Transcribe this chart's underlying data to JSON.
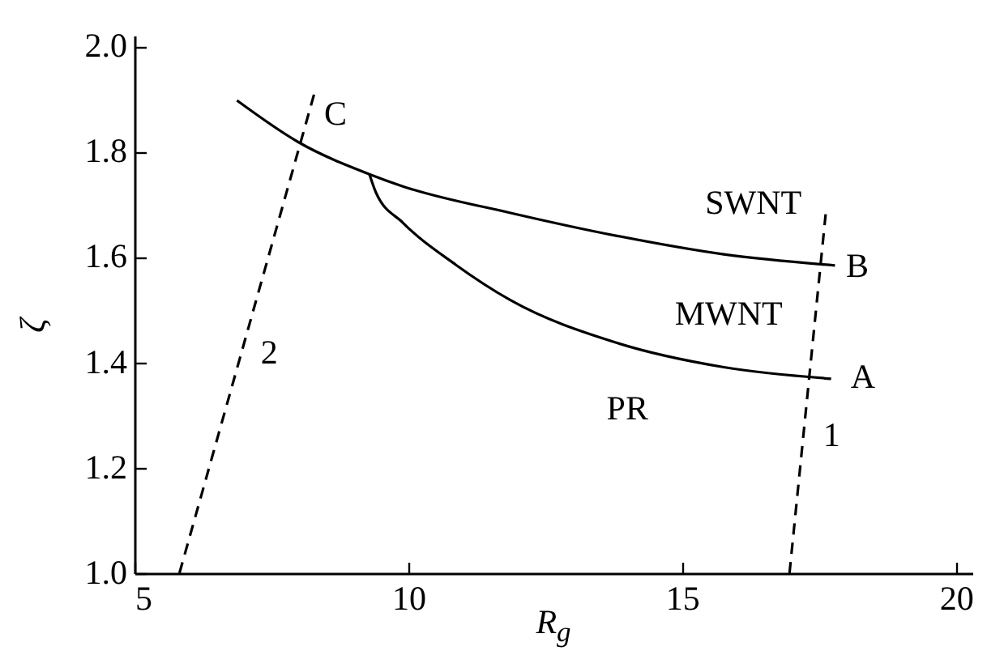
{
  "chart_data": {
    "type": "line",
    "xlabel": "R$_{g}$",
    "ylabel": "ζ",
    "xlim": [
      5,
      20.3
    ],
    "xticks": [
      5,
      10,
      15,
      20
    ],
    "ylim": [
      1,
      2.02
    ],
    "yticks": [
      {
        "value": 1,
        "label": "1.0"
      },
      1.2,
      1.4,
      1.6,
      1.8,
      {
        "value": 2,
        "label": "2.0"
      }
    ],
    "grid": false,
    "marker": "none",
    "series": [
      {
        "color": "#000000",
        "line_style": "solid",
        "x": [
          6.87,
          7.99,
          9.29,
          9.9,
          11.85,
          13.81,
          15.76,
          17.79
        ],
        "values": [
          1.897,
          1.818,
          1.757,
          1.734,
          1.684,
          1.64,
          1.605,
          1.584
        ]
      },
      {
        "color": "#000000",
        "line_style": "solid",
        "x": [
          9.29,
          9.41,
          9.9,
          10.87,
          11.85,
          13.81,
          15.76,
          17.72
        ],
        "values": [
          1.757,
          1.722,
          1.665,
          1.585,
          1.519,
          1.437,
          1.391,
          1.369
        ]
      },
      {
        "color": "#000000",
        "line_style": "dashed",
        "x": [
          16.96,
          17.62
        ],
        "values": [
          1.0,
          1.681
        ]
      },
      {
        "color": "#000000",
        "line_style": "dashed",
        "x": [
          5.82,
          8.28
        ],
        "values": [
          1.0,
          1.909
        ]
      }
    ],
    "annotations": [
      "C",
      "2",
      "SWNT",
      "B",
      "MWNT",
      "A",
      "PR",
      "1"
    ]
  }
}
